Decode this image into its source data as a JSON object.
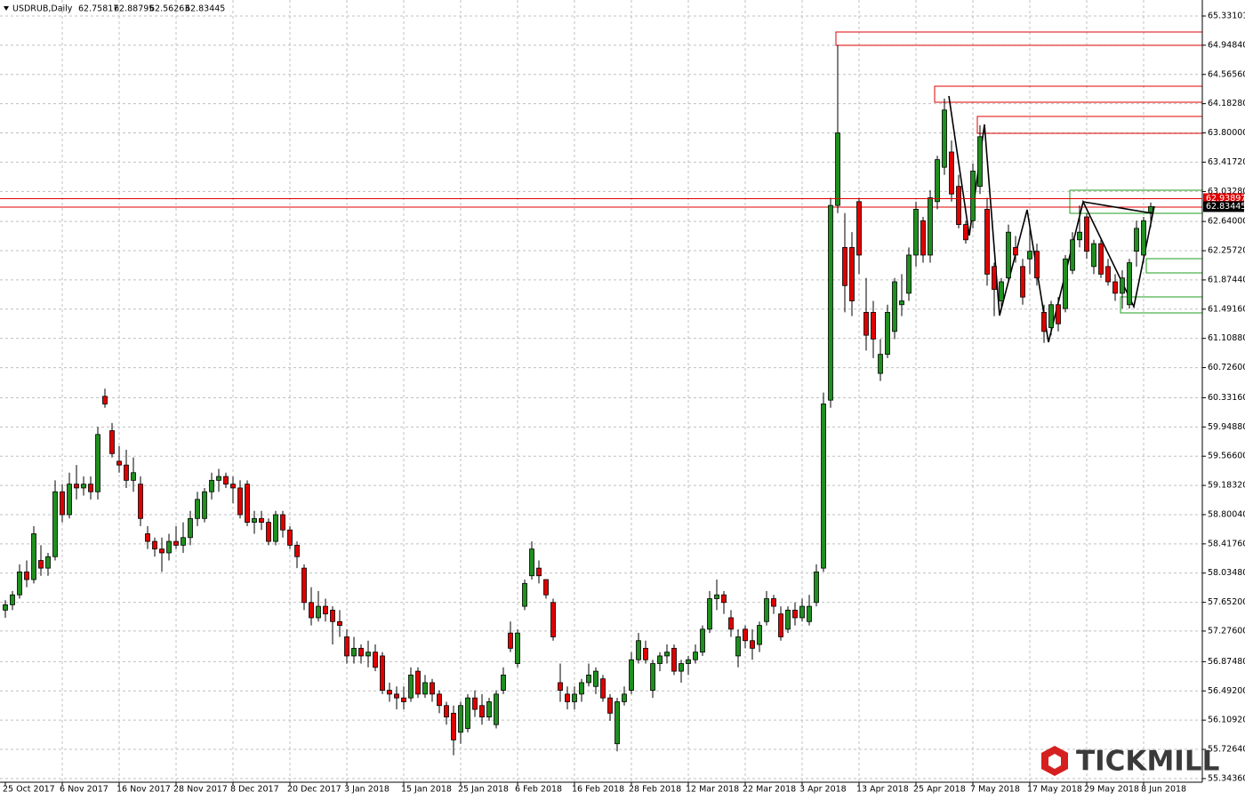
{
  "chart_data": {
    "type": "candlestick",
    "title": "USDRUB,Daily",
    "logo": "TICKMILL",
    "up_color": "#1f8f1f",
    "down_color": "#e00000",
    "grid": true,
    "ylim": [
      55.296,
      65.5406
    ],
    "yticks": [
      {
        "value": 65.33101,
        "label": "65.33101"
      },
      {
        "value": 64.9484,
        "label": "64.94840"
      },
      {
        "value": 64.5656,
        "label": "64.56560"
      },
      {
        "value": 64.1828,
        "label": "64.18280"
      },
      {
        "value": 63.8,
        "label": "63.80000"
      },
      {
        "value": 63.4172,
        "label": "63.41720"
      },
      {
        "value": 63.0328,
        "label": "63.03280"
      },
      {
        "value": 62.64,
        "label": "62.64000"
      },
      {
        "value": 62.2572,
        "label": "62.25720"
      },
      {
        "value": 61.8744,
        "label": "61.87440"
      },
      {
        "value": 61.4916,
        "label": "61.49160"
      },
      {
        "value": 61.1088,
        "label": "61.10880"
      },
      {
        "value": 60.726,
        "label": "60.72600"
      },
      {
        "value": 60.3316,
        "label": "60.33160"
      },
      {
        "value": 59.9488,
        "label": "59.94880"
      },
      {
        "value": 59.566,
        "label": "59.56600"
      },
      {
        "value": 59.1832,
        "label": "59.18320"
      },
      {
        "value": 58.8004,
        "label": "58.80040"
      },
      {
        "value": 58.4176,
        "label": "58.41760"
      },
      {
        "value": 58.0348,
        "label": "58.03480"
      },
      {
        "value": 57.652,
        "label": "57.65200"
      },
      {
        "value": 57.276,
        "label": "57.27600"
      },
      {
        "value": 56.8748,
        "label": "56.87480"
      },
      {
        "value": 56.492,
        "label": "56.49200"
      },
      {
        "value": 56.1092,
        "label": "56.10920"
      },
      {
        "value": 55.7264,
        "label": "55.72640"
      },
      {
        "value": 55.3436,
        "label": "55.34360"
      }
    ],
    "levels": [
      {
        "value": 62.93897,
        "label": "62.93897",
        "color": "#e00000"
      }
    ],
    "categories": [
      "25 Oct 2017",
      null,
      null,
      null,
      null,
      null,
      null,
      null,
      "6 Nov 2017",
      null,
      null,
      null,
      null,
      null,
      null,
      null,
      "16 Nov 2017",
      null,
      null,
      null,
      null,
      null,
      null,
      null,
      "28 Nov 2017",
      null,
      null,
      null,
      null,
      null,
      null,
      null,
      "8 Dec 2017",
      null,
      null,
      null,
      null,
      null,
      null,
      null,
      "20 Dec 2017",
      null,
      null,
      null,
      null,
      null,
      null,
      null,
      "3 Jan 2018",
      null,
      null,
      null,
      null,
      null,
      null,
      null,
      "15 Jan 2018",
      null,
      null,
      null,
      null,
      null,
      null,
      null,
      "25 Jan 2018",
      null,
      null,
      null,
      null,
      null,
      null,
      null,
      "6 Feb 2018",
      null,
      null,
      null,
      null,
      null,
      null,
      null,
      "16 Feb 2018",
      null,
      null,
      null,
      null,
      null,
      null,
      null,
      "28 Feb 2018",
      null,
      null,
      null,
      null,
      null,
      null,
      null,
      "12 Mar 2018",
      null,
      null,
      null,
      null,
      null,
      null,
      null,
      "22 Mar 2018",
      null,
      null,
      null,
      null,
      null,
      null,
      null,
      "3 Apr 2018",
      null,
      null,
      null,
      null,
      null,
      null,
      null,
      "13 Apr 2018",
      null,
      null,
      null,
      null,
      null,
      null,
      null,
      "25 Apr 2018",
      null,
      null,
      null,
      null,
      null,
      null,
      null,
      "7 May 2018",
      null,
      null,
      null,
      null,
      null,
      null,
      null,
      "17 May 2018",
      null,
      null,
      null,
      null,
      null,
      null,
      null,
      "29 May 2018",
      null,
      null,
      null,
      null,
      null,
      null,
      null,
      "8 Jun 2018",
      null
    ],
    "open": [
      57.55,
      57.62,
      57.75,
      58.05,
      57.95,
      58.2,
      58.1,
      58.25,
      59.1,
      58.8,
      59.2,
      59.15,
      59.2,
      59.1,
      60.35,
      59.9,
      59.5,
      59.45,
      59.25,
      59.2,
      58.55,
      58.45,
      58.35,
      58.3,
      58.45,
      58.4,
      58.5,
      58.75,
      58.75,
      59.1,
      59.25,
      59.3,
      59.2,
      59.15,
      59.2,
      58.7,
      58.75,
      58.7,
      58.45,
      58.8,
      58.6,
      58.4,
      58.1,
      57.65,
      57.45,
      57.6,
      57.55,
      57.4,
      57.2,
      56.95,
      57.05,
      56.95,
      57.0,
      56.95,
      56.5,
      56.45,
      56.4,
      56.4,
      56.75,
      56.45,
      56.6,
      56.45,
      56.3,
      56.2,
      55.95,
      56.0,
      56.4,
      56.3,
      56.15,
      56.05,
      56.5,
      57.25,
      56.85,
      57.6,
      58.0,
      58.1,
      57.95,
      57.65,
      56.6,
      56.45,
      56.35,
      56.45,
      56.6,
      56.55,
      56.65,
      56.4,
      55.8,
      56.35,
      56.5,
      56.9,
      57.05,
      56.5,
      56.85,
      56.95,
      57.05,
      56.75,
      56.85,
      56.9,
      57.0,
      57.3,
      57.7,
      57.75,
      57.45,
      56.95,
      57.3,
      57.15,
      57.1,
      57.4,
      57.7,
      57.5,
      57.3,
      57.55,
      57.45,
      57.4,
      57.65,
      58.1,
      60.3,
      62.85,
      62.3,
      62.3,
      62.9,
      61.45,
      61.45,
      60.65,
      60.9,
      61.2,
      61.55,
      61.7,
      62.2,
      62.65,
      62.2,
      62.9,
      63.35,
      63.55,
      63.1,
      62.6,
      62.65,
      63.1,
      62.8,
      62.05,
      61.6,
      61.9,
      62.3,
      62.05,
      62.15,
      62.25,
      61.45,
      61.25,
      61.55,
      61.5,
      62.0,
      62.4,
      62.7,
      62.05,
      62.35,
      62.05,
      61.85,
      61.7,
      61.55,
      62.25,
      62.2,
      62.75817
    ],
    "high": [
      57.68,
      57.8,
      58.15,
      58.2,
      58.65,
      58.4,
      58.3,
      59.25,
      59.2,
      59.35,
      59.45,
      59.3,
      59.3,
      59.95,
      60.45,
      60.0,
      59.7,
      59.65,
      59.55,
      59.3,
      58.65,
      58.5,
      58.5,
      58.55,
      58.65,
      58.7,
      58.85,
      59.1,
      59.15,
      59.35,
      59.4,
      59.35,
      59.3,
      59.25,
      59.25,
      58.85,
      58.85,
      58.75,
      58.85,
      58.85,
      58.65,
      58.45,
      58.15,
      57.85,
      57.8,
      57.7,
      57.6,
      57.55,
      57.3,
      57.2,
      57.1,
      57.15,
      57.1,
      57.0,
      56.6,
      56.55,
      56.55,
      56.8,
      56.8,
      56.7,
      56.65,
      56.5,
      56.35,
      56.3,
      56.35,
      56.45,
      56.5,
      56.45,
      56.4,
      56.5,
      56.8,
      57.4,
      57.3,
      57.95,
      58.45,
      58.2,
      57.95,
      57.7,
      56.85,
      56.55,
      56.55,
      56.65,
      56.85,
      56.8,
      56.7,
      56.45,
      56.4,
      56.55,
      57.0,
      57.25,
      57.15,
      56.9,
      57.0,
      57.1,
      57.1,
      56.9,
      56.95,
      57.1,
      57.35,
      57.8,
      57.95,
      57.8,
      57.55,
      57.3,
      57.35,
      57.3,
      57.4,
      57.8,
      57.75,
      57.6,
      57.6,
      57.65,
      57.7,
      57.75,
      58.15,
      60.4,
      62.95,
      64.95,
      62.75,
      62.5,
      62.95,
      61.9,
      61.6,
      61.1,
      61.55,
      61.9,
      61.95,
      62.3,
      62.9,
      62.7,
      63.05,
      63.5,
      64.25,
      63.7,
      63.25,
      62.65,
      63.4,
      63.9,
      62.95,
      62.1,
      61.9,
      62.6,
      62.45,
      62.15,
      62.55,
      62.35,
      61.55,
      61.6,
      61.65,
      62.2,
      62.5,
      62.85,
      62.75,
      62.4,
      62.4,
      62.15,
      61.95,
      62.0,
      62.15,
      62.65,
      62.7,
      62.88795
    ],
    "low": [
      57.45,
      57.55,
      57.7,
      57.85,
      57.9,
      58.0,
      58.0,
      58.2,
      58.7,
      58.75,
      59.0,
      59.05,
      59.0,
      59.0,
      60.2,
      59.55,
      59.35,
      59.15,
      59.1,
      58.65,
      58.35,
      58.25,
      58.05,
      58.2,
      58.35,
      58.3,
      58.4,
      58.65,
      58.7,
      59.0,
      59.1,
      59.15,
      58.95,
      58.75,
      58.65,
      58.55,
      58.6,
      58.4,
      58.4,
      58.5,
      58.35,
      58.1,
      57.55,
      57.35,
      57.4,
      57.4,
      57.1,
      57.2,
      56.85,
      56.85,
      56.85,
      56.8,
      56.75,
      56.45,
      56.35,
      56.25,
      56.25,
      56.35,
      56.4,
      56.4,
      56.35,
      56.2,
      56.05,
      55.65,
      55.8,
      55.95,
      56.15,
      56.05,
      56.1,
      56.0,
      56.45,
      57.0,
      56.8,
      57.55,
      57.95,
      57.9,
      57.7,
      57.15,
      56.35,
      56.25,
      56.25,
      56.35,
      56.55,
      56.45,
      56.35,
      56.1,
      55.7,
      56.3,
      56.45,
      56.85,
      56.85,
      56.4,
      56.75,
      56.85,
      56.7,
      56.6,
      56.7,
      56.85,
      56.95,
      57.25,
      57.55,
      57.5,
      57.2,
      56.8,
      57.05,
      56.9,
      57.0,
      57.35,
      57.5,
      57.15,
      57.25,
      57.35,
      57.4,
      57.35,
      57.6,
      58.05,
      60.2,
      62.75,
      61.45,
      61.4,
      61.95,
      60.95,
      60.85,
      60.55,
      60.85,
      61.1,
      61.4,
      61.6,
      62.05,
      62.1,
      62.1,
      62.8,
      63.25,
      62.9,
      62.55,
      62.35,
      62.55,
      63.0,
      61.8,
      61.4,
      61.5,
      61.85,
      62.1,
      61.55,
      61.95,
      61.8,
      61.05,
      61.15,
      61.2,
      61.45,
      61.95,
      62.3,
      62.15,
      61.95,
      61.9,
      61.8,
      61.6,
      61.5,
      61.5,
      62.05,
      62.1,
      62.56263
    ],
    "close": [
      57.62,
      57.75,
      58.05,
      57.95,
      58.55,
      58.1,
      58.25,
      59.1,
      58.8,
      59.2,
      59.15,
      59.2,
      59.1,
      59.85,
      60.25,
      59.6,
      59.45,
      59.25,
      59.35,
      58.75,
      58.45,
      58.35,
      58.3,
      58.45,
      58.4,
      58.5,
      58.75,
      59.0,
      59.1,
      59.25,
      59.3,
      59.2,
      59.15,
      58.8,
      58.7,
      58.75,
      58.7,
      58.45,
      58.8,
      58.6,
      58.4,
      58.25,
      57.65,
      57.45,
      57.6,
      57.5,
      57.4,
      57.35,
      56.95,
      57.05,
      56.95,
      57.0,
      56.8,
      56.5,
      56.45,
      56.4,
      56.35,
      56.7,
      56.45,
      56.6,
      56.45,
      56.3,
      56.15,
      55.85,
      56.3,
      56.4,
      56.25,
      56.15,
      56.35,
      56.45,
      56.7,
      57.05,
      57.25,
      57.9,
      58.35,
      58.0,
      57.75,
      57.2,
      56.5,
      56.35,
      56.45,
      56.6,
      56.7,
      56.75,
      56.4,
      56.2,
      56.35,
      56.45,
      56.9,
      57.15,
      56.9,
      56.85,
      56.95,
      57.0,
      56.75,
      56.85,
      56.9,
      57.0,
      57.3,
      57.7,
      57.75,
      57.65,
      57.3,
      57.2,
      57.15,
      57.05,
      57.35,
      57.7,
      57.6,
      57.2,
      57.55,
      57.45,
      57.6,
      57.6,
      58.05,
      60.25,
      62.85,
      63.8,
      61.8,
      61.6,
      62.2,
      61.15,
      61.1,
      60.9,
      61.45,
      61.85,
      61.6,
      62.2,
      62.8,
      62.2,
      62.95,
      63.45,
      64.1,
      63.0,
      62.6,
      62.4,
      63.3,
      63.75,
      61.95,
      61.75,
      61.85,
      62.5,
      62.2,
      61.65,
      62.25,
      61.9,
      61.2,
      61.55,
      61.3,
      62.15,
      62.4,
      62.5,
      62.25,
      62.35,
      61.95,
      61.85,
      61.7,
      61.9,
      62.1,
      62.55,
      62.65,
      62.83445
    ]
  }
}
